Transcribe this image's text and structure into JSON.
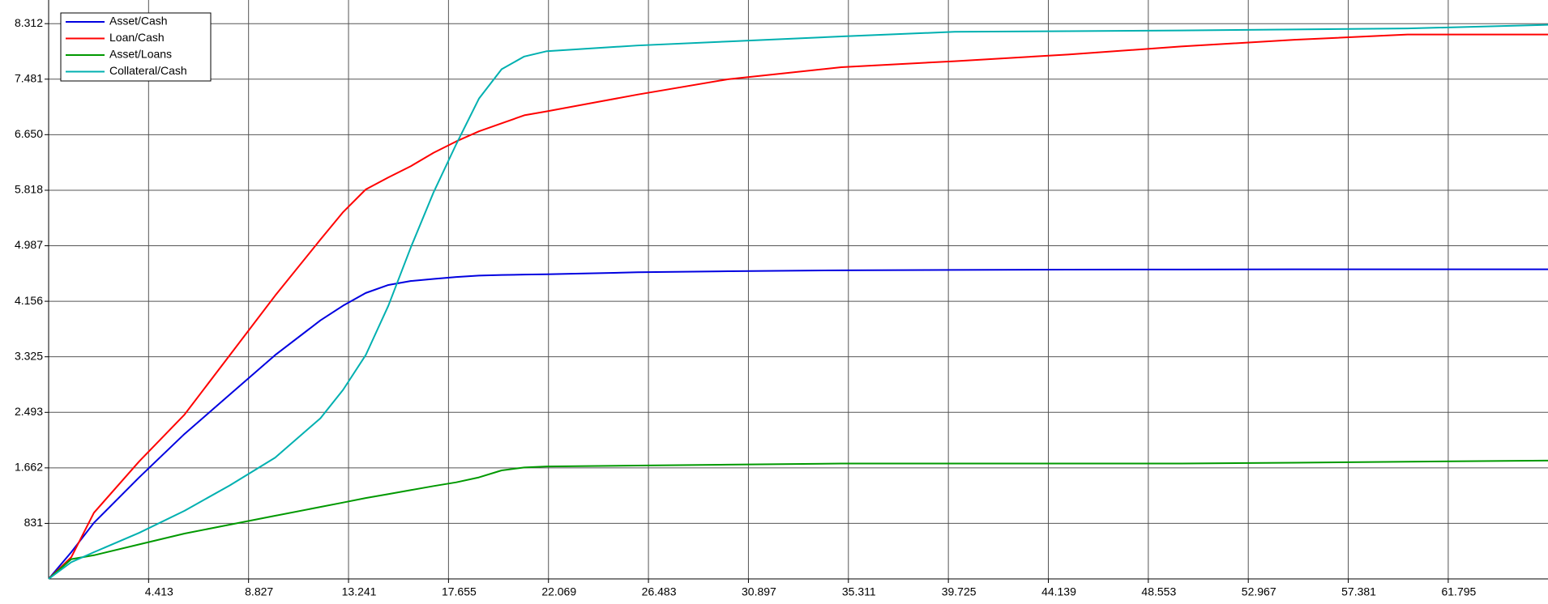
{
  "chart_data": {
    "type": "line",
    "x": [
      0,
      1,
      2,
      4,
      6,
      8,
      10,
      12,
      13,
      14,
      15,
      16,
      17,
      18,
      19,
      20,
      21,
      22,
      26,
      30,
      35,
      40,
      45,
      50,
      55,
      60,
      66.2
    ],
    "series": [
      {
        "name": "Asset/Cash",
        "color": "#0000e0",
        "values": [
          0,
          400,
          840,
          1520,
          2170,
          2760,
          3350,
          3870,
          4090,
          4280,
          4400,
          4460,
          4490,
          4520,
          4540,
          4550,
          4555,
          4560,
          4590,
          4605,
          4620,
          4625,
          4630,
          4632,
          4634,
          4635,
          4635
        ]
      },
      {
        "name": "Loan/Cash",
        "color": "#ff0000",
        "values": [
          0,
          325,
          990,
          1760,
          2460,
          3350,
          4240,
          5080,
          5490,
          5830,
          6010,
          6180,
          6380,
          6550,
          6700,
          6820,
          6940,
          7000,
          7250,
          7480,
          7660,
          7750,
          7850,
          7970,
          8070,
          8150,
          8150
        ]
      },
      {
        "name": "Asset/Loans",
        "color": "#009900",
        "values": [
          0,
          295,
          354,
          517,
          679,
          812,
          945,
          1077,
          1143,
          1210,
          1270,
          1330,
          1390,
          1446,
          1520,
          1624,
          1668,
          1683,
          1697,
          1710,
          1727,
          1727,
          1727,
          1727,
          1740,
          1755,
          1771
        ]
      },
      {
        "name": "Collateral/Cash",
        "color": "#00b0b0",
        "values": [
          0,
          250,
          400,
          690,
          1020,
          1400,
          1815,
          2405,
          2830,
          3350,
          4090,
          4970,
          5790,
          6510,
          7190,
          7630,
          7820,
          7900,
          7985,
          8045,
          8120,
          8190,
          8200,
          8210,
          8225,
          8240,
          8295
        ]
      }
    ],
    "xlim": [
      0,
      66.2
    ],
    "xticks": [
      4.413,
      8.827,
      13.241,
      17.655,
      22.069,
      26.483,
      30.897,
      35.311,
      39.725,
      44.139,
      48.553,
      52.967,
      57.381,
      61.795
    ],
    "ylim": [
      0,
      8666
    ],
    "yticks": [
      831,
      {
        "value": 1662,
        "label": "1.662"
      },
      {
        "value": 2493,
        "label": "2.493"
      },
      {
        "value": 3325,
        "label": "3.325"
      },
      {
        "value": 4156,
        "label": "4.156"
      },
      {
        "value": 4987,
        "label": "4.987"
      },
      {
        "value": 5818,
        "label": "5.818"
      },
      {
        "value": 6650,
        "label": "6.650"
      },
      {
        "value": 7481,
        "label": "7.481"
      },
      {
        "value": 8312,
        "label": "8.312"
      }
    ],
    "grid": true
  }
}
